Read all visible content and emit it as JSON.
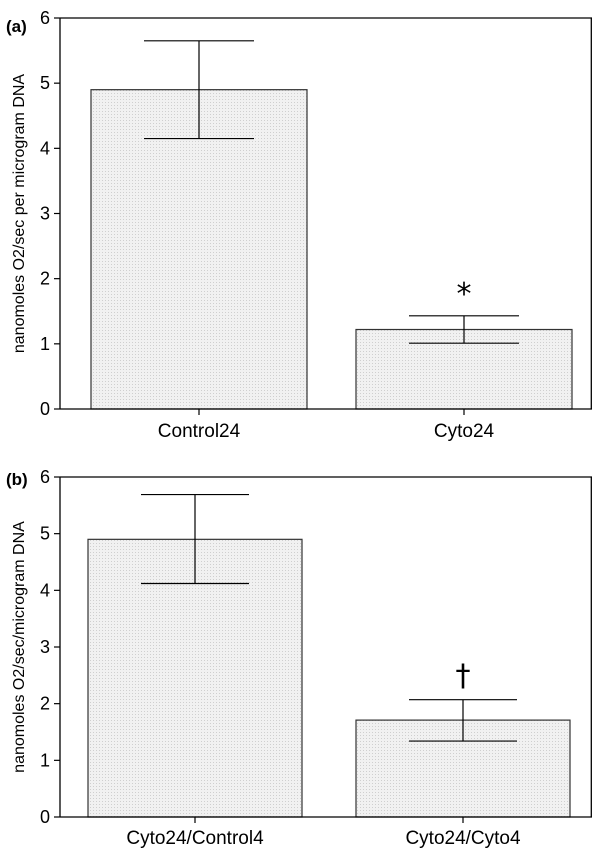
{
  "colors": {
    "bar_fill": "#eeeeee",
    "bar_stroke": "#333333",
    "axis": "#000000"
  },
  "chart_data": [
    {
      "type": "bar",
      "panel_label": "(a)",
      "categories": [
        "Control24",
        "Cyto24"
      ],
      "values": [
        4.9,
        1.22
      ],
      "error_low": [
        4.15,
        1.01
      ],
      "error_high": [
        5.65,
        1.43
      ],
      "significance": [
        "",
        "*"
      ],
      "ylabel": "nanomoles O2/sec per microgram DNA",
      "ylim": [
        0,
        6
      ],
      "yticks": [
        "0",
        "1",
        "2",
        "3",
        "4",
        "5",
        "6"
      ],
      "grid": false
    },
    {
      "type": "bar",
      "panel_label": "(b)",
      "categories": [
        "Cyto24/Control4",
        "Cyto24/Cyto4"
      ],
      "values": [
        4.9,
        1.71
      ],
      "error_low": [
        4.12,
        1.34
      ],
      "error_high": [
        5.69,
        2.07
      ],
      "significance": [
        "",
        "†"
      ],
      "ylabel": "nanomoles O2/sec/microgram DNA",
      "ylim": [
        0,
        6
      ],
      "yticks": [
        "0",
        "1",
        "2",
        "3",
        "4",
        "5",
        "6"
      ],
      "grid": false
    }
  ]
}
